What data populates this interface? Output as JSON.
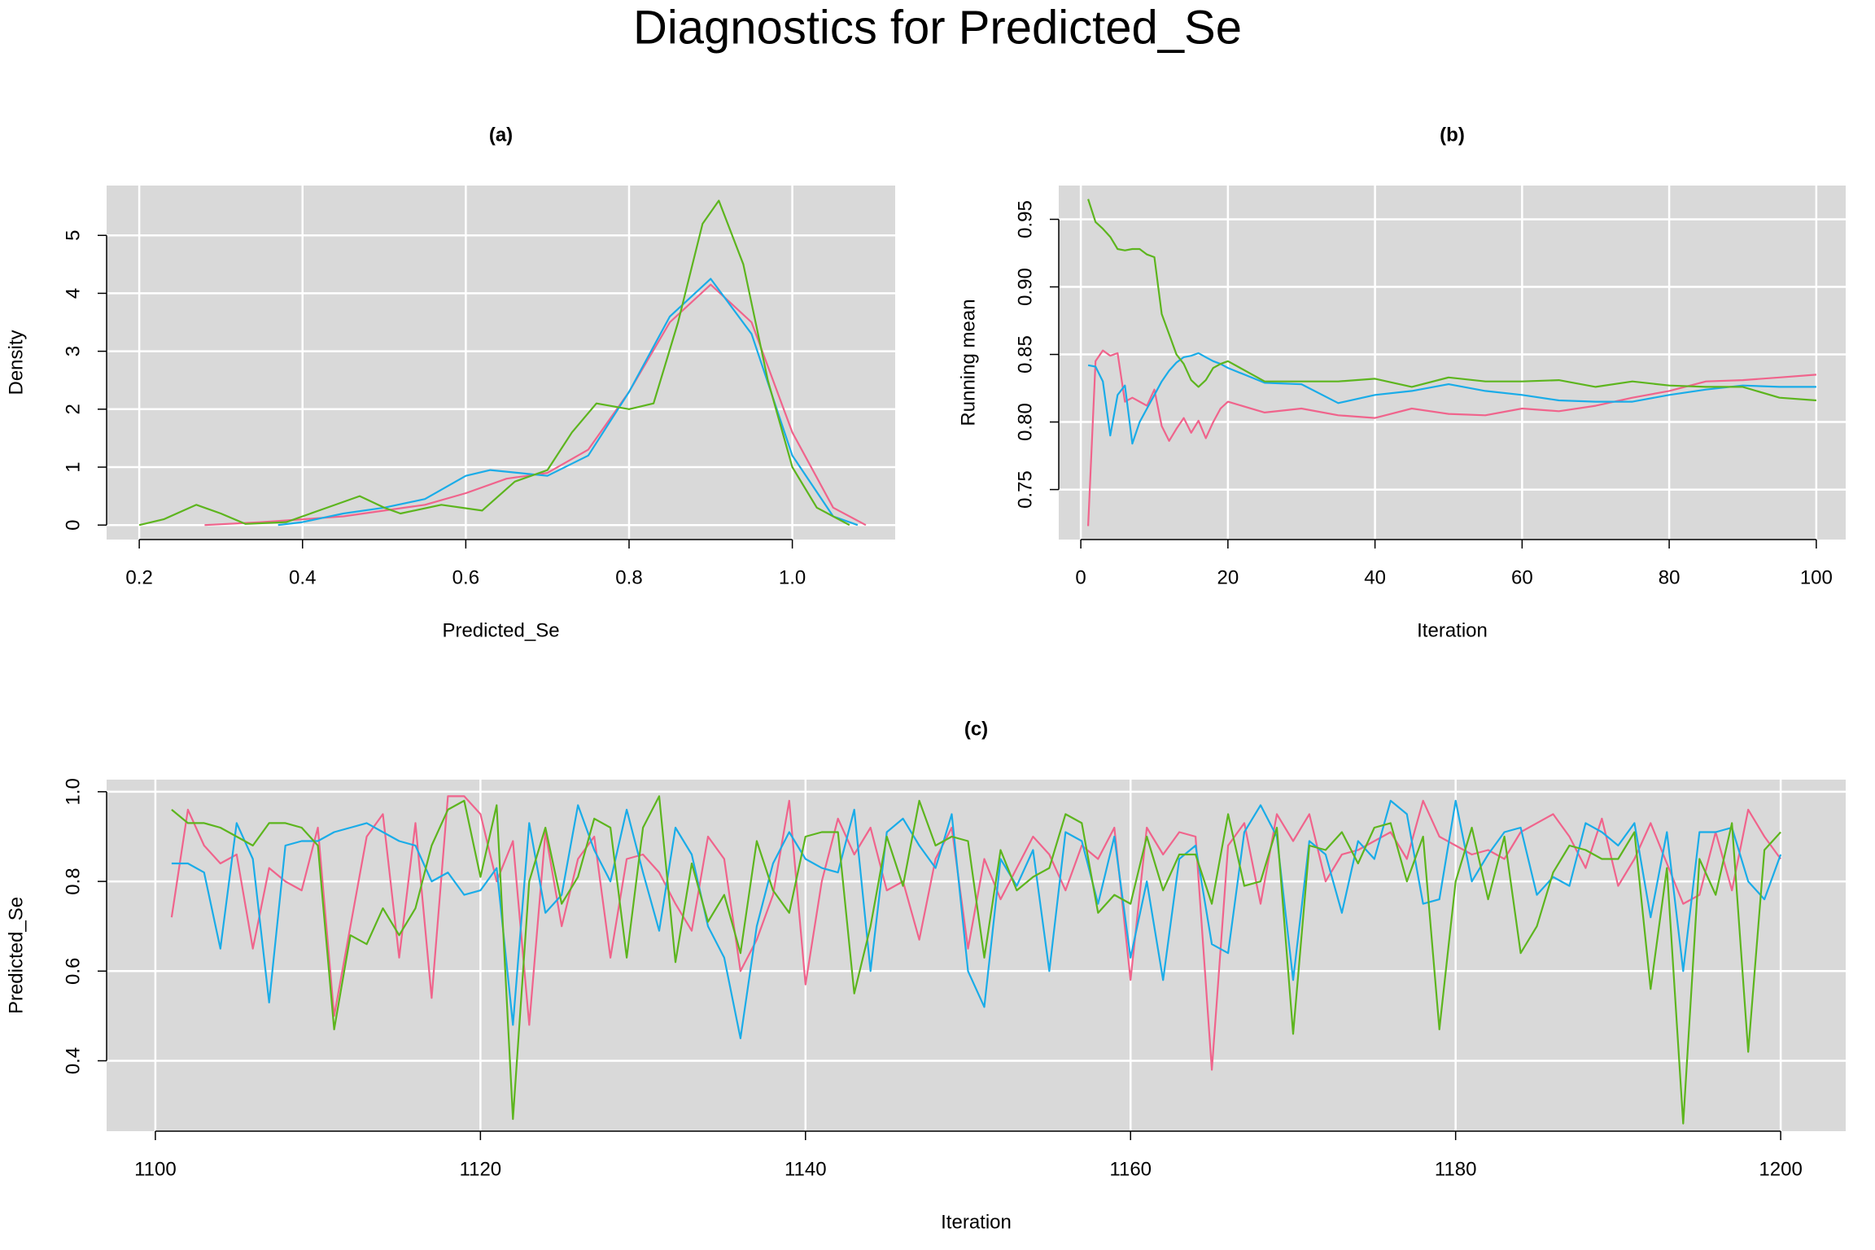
{
  "title": "Diagnostics for Predicted_Se",
  "chart_data": [
    {
      "type": "line",
      "title": "(a)",
      "xlabel": "Predicted_Se",
      "ylabel": "Density",
      "xlim": [
        0.16,
        1.126
      ],
      "ylim": [
        -0.25,
        5.86
      ],
      "xticks": [
        0.2,
        0.4,
        0.6,
        0.8,
        {
          "value": 1,
          "label": "1.0"
        }
      ],
      "yticks": [
        0,
        1,
        2,
        3,
        4,
        5
      ],
      "grid": true,
      "series": [
        {
          "color": "#F0648C",
          "x": [
            0.28,
            0.35,
            0.4,
            0.45,
            0.5,
            0.55,
            0.6,
            0.65,
            0.7,
            0.75,
            0.8,
            0.85,
            0.9,
            0.95,
            1.0,
            1.05,
            1.09
          ],
          "values": [
            0,
            0.05,
            0.1,
            0.15,
            0.25,
            0.35,
            0.55,
            0.8,
            0.9,
            1.3,
            2.3,
            3.5,
            4.15,
            3.5,
            1.6,
            0.3,
            0
          ]
        },
        {
          "color": "#1AACE8",
          "x": [
            0.37,
            0.4,
            0.45,
            0.5,
            0.55,
            0.6,
            0.63,
            0.7,
            0.75,
            0.8,
            0.85,
            0.9,
            0.95,
            1.0,
            1.05,
            1.08
          ],
          "values": [
            0,
            0.05,
            0.2,
            0.3,
            0.45,
            0.85,
            0.95,
            0.85,
            1.2,
            2.3,
            3.6,
            4.25,
            3.3,
            1.2,
            0.15,
            0
          ]
        },
        {
          "color": "#5DB51E",
          "x": [
            0.2,
            0.23,
            0.27,
            0.3,
            0.33,
            0.38,
            0.42,
            0.47,
            0.5,
            0.52,
            0.57,
            0.62,
            0.66,
            0.7,
            0.73,
            0.76,
            0.8,
            0.83,
            0.86,
            0.89,
            0.91,
            0.94,
            0.97,
            1.0,
            1.03,
            1.07
          ],
          "values": [
            0,
            0.1,
            0.35,
            0.2,
            0.02,
            0.05,
            0.25,
            0.5,
            0.3,
            0.2,
            0.35,
            0.25,
            0.75,
            0.95,
            1.6,
            2.1,
            2.0,
            2.1,
            3.5,
            5.2,
            5.6,
            4.5,
            2.5,
            1.0,
            0.3,
            0
          ]
        }
      ]
    },
    {
      "type": "line",
      "title": "(b)",
      "xlabel": "Iteration",
      "ylabel": "Running mean",
      "xlim": [
        -3,
        104
      ],
      "ylim": [
        0.713,
        0.975
      ],
      "xticks": [
        0,
        20,
        40,
        60,
        80,
        100
      ],
      "yticks": [
        0.75,
        {
          "value": 0.8,
          "label": "0.80"
        },
        0.85,
        {
          "value": 0.9,
          "label": "0.90"
        },
        0.95
      ],
      "grid": true,
      "x": [
        1,
        2,
        3,
        4,
        5,
        6,
        7,
        8,
        9,
        10,
        11,
        12,
        13,
        14,
        15,
        16,
        17,
        18,
        19,
        20,
        25,
        30,
        35,
        40,
        45,
        50,
        55,
        60,
        65,
        70,
        75,
        80,
        85,
        90,
        95,
        100
      ],
      "series": [
        {
          "color": "#F0648C",
          "values": [
            0.723,
            0.845,
            0.853,
            0.849,
            0.851,
            0.815,
            0.818,
            0.815,
            0.812,
            0.824,
            0.797,
            0.786,
            0.795,
            0.803,
            0.792,
            0.801,
            0.788,
            0.8,
            0.81,
            0.815,
            0.807,
            0.81,
            0.805,
            0.803,
            0.81,
            0.806,
            0.805,
            0.81,
            0.808,
            0.812,
            0.818,
            0.823,
            0.83,
            0.831,
            0.833,
            0.835
          ]
        },
        {
          "color": "#1AACE8",
          "values": [
            0.842,
            0.841,
            0.83,
            0.79,
            0.82,
            0.827,
            0.784,
            0.8,
            0.81,
            0.82,
            0.83,
            0.838,
            0.844,
            0.848,
            0.849,
            0.851,
            0.848,
            0.845,
            0.843,
            0.84,
            0.829,
            0.828,
            0.814,
            0.82,
            0.823,
            0.828,
            0.823,
            0.82,
            0.816,
            0.815,
            0.815,
            0.82,
            0.824,
            0.827,
            0.826,
            0.826
          ]
        },
        {
          "color": "#5DB51E",
          "values": [
            0.965,
            0.948,
            0.943,
            0.937,
            0.928,
            0.927,
            0.928,
            0.928,
            0.924,
            0.922,
            0.88,
            0.865,
            0.85,
            0.843,
            0.831,
            0.826,
            0.831,
            0.84,
            0.843,
            0.845,
            0.83,
            0.83,
            0.83,
            0.832,
            0.826,
            0.833,
            0.83,
            0.83,
            0.831,
            0.826,
            0.83,
            0.827,
            0.826,
            0.826,
            0.818,
            0.816
          ]
        }
      ]
    },
    {
      "type": "line",
      "title": "(c)",
      "xlabel": "Iteration",
      "ylabel": "Predicted_Se",
      "xlim": [
        1097,
        1204
      ],
      "ylim": [
        0.243,
        1.027
      ],
      "xticks": [
        1100,
        1120,
        1140,
        1160,
        1180,
        1200
      ],
      "yticks": [
        0.4,
        0.6,
        0.8,
        {
          "value": 1,
          "label": "1.0"
        }
      ],
      "grid": true,
      "x": [
        1101,
        1102,
        1103,
        1104,
        1105,
        1106,
        1107,
        1108,
        1109,
        1110,
        1111,
        1112,
        1113,
        1114,
        1115,
        1116,
        1117,
        1118,
        1119,
        1120,
        1121,
        1122,
        1123,
        1124,
        1125,
        1126,
        1127,
        1128,
        1129,
        1130,
        1131,
        1132,
        1133,
        1134,
        1135,
        1136,
        1137,
        1138,
        1139,
        1140,
        1141,
        1142,
        1143,
        1144,
        1145,
        1146,
        1147,
        1148,
        1149,
        1150,
        1151,
        1152,
        1153,
        1154,
        1155,
        1156,
        1157,
        1158,
        1159,
        1160,
        1161,
        1162,
        1163,
        1164,
        1165,
        1166,
        1167,
        1168,
        1169,
        1170,
        1171,
        1172,
        1173,
        1174,
        1175,
        1176,
        1177,
        1178,
        1179,
        1180,
        1181,
        1182,
        1183,
        1184,
        1185,
        1186,
        1187,
        1188,
        1189,
        1190,
        1191,
        1192,
        1193,
        1194,
        1195,
        1196,
        1197,
        1198,
        1199,
        1200
      ],
      "series": [
        {
          "color": "#F0648C",
          "values": [
            0.72,
            0.96,
            0.88,
            0.84,
            0.86,
            0.65,
            0.83,
            0.8,
            0.78,
            0.92,
            0.5,
            0.7,
            0.9,
            0.95,
            0.63,
            0.93,
            0.54,
            0.99,
            0.99,
            0.95,
            0.8,
            0.89,
            0.48,
            0.91,
            0.7,
            0.85,
            0.9,
            0.63,
            0.85,
            0.86,
            0.82,
            0.75,
            0.69,
            0.9,
            0.85,
            0.6,
            0.67,
            0.77,
            0.98,
            0.57,
            0.8,
            0.94,
            0.86,
            0.92,
            0.78,
            0.8,
            0.67,
            0.85,
            0.92,
            0.65,
            0.85,
            0.76,
            0.83,
            0.9,
            0.86,
            0.78,
            0.88,
            0.85,
            0.92,
            0.58,
            0.92,
            0.86,
            0.91,
            0.9,
            0.38,
            0.88,
            0.93,
            0.75,
            0.95,
            0.89,
            0.95,
            0.8,
            0.86,
            0.87,
            0.89,
            0.91,
            0.85,
            0.98,
            0.9,
            0.88,
            0.86,
            0.87,
            0.85,
            0.91,
            0.93,
            0.95,
            0.9,
            0.83,
            0.94,
            0.79,
            0.85,
            0.93,
            0.84,
            0.75,
            0.77,
            0.91,
            0.78,
            0.96,
            0.9,
            0.85
          ]
        },
        {
          "color": "#1AACE8",
          "values": [
            0.84,
            0.84,
            0.82,
            0.65,
            0.93,
            0.85,
            0.53,
            0.88,
            0.89,
            0.89,
            0.91,
            0.92,
            0.93,
            0.91,
            0.89,
            0.88,
            0.8,
            0.82,
            0.77,
            0.78,
            0.83,
            0.48,
            0.93,
            0.73,
            0.77,
            0.97,
            0.87,
            0.8,
            0.96,
            0.82,
            0.69,
            0.92,
            0.86,
            0.7,
            0.63,
            0.45,
            0.7,
            0.84,
            0.91,
            0.85,
            0.83,
            0.82,
            0.96,
            0.6,
            0.91,
            0.94,
            0.88,
            0.83,
            0.95,
            0.6,
            0.52,
            0.85,
            0.79,
            0.87,
            0.6,
            0.91,
            0.89,
            0.75,
            0.9,
            0.63,
            0.8,
            0.58,
            0.85,
            0.88,
            0.66,
            0.64,
            0.91,
            0.97,
            0.9,
            0.58,
            0.89,
            0.86,
            0.73,
            0.89,
            0.85,
            0.98,
            0.95,
            0.75,
            0.76,
            0.98,
            0.8,
            0.86,
            0.91,
            0.92,
            0.77,
            0.81,
            0.79,
            0.93,
            0.91,
            0.88,
            0.93,
            0.72,
            0.91,
            0.6,
            0.91,
            0.91,
            0.92,
            0.8,
            0.76,
            0.86
          ]
        },
        {
          "color": "#5DB51E",
          "values": [
            0.96,
            0.93,
            0.93,
            0.92,
            0.9,
            0.88,
            0.93,
            0.93,
            0.92,
            0.88,
            0.47,
            0.68,
            0.66,
            0.74,
            0.68,
            0.74,
            0.88,
            0.96,
            0.98,
            0.81,
            0.97,
            0.27,
            0.8,
            0.92,
            0.75,
            0.81,
            0.94,
            0.92,
            0.63,
            0.92,
            0.99,
            0.62,
            0.84,
            0.71,
            0.77,
            0.64,
            0.89,
            0.78,
            0.73,
            0.9,
            0.91,
            0.91,
            0.55,
            0.7,
            0.9,
            0.79,
            0.98,
            0.88,
            0.9,
            0.89,
            0.63,
            0.87,
            0.78,
            0.81,
            0.83,
            0.95,
            0.93,
            0.73,
            0.77,
            0.75,
            0.9,
            0.78,
            0.86,
            0.86,
            0.75,
            0.95,
            0.79,
            0.8,
            0.92,
            0.46,
            0.88,
            0.87,
            0.91,
            0.84,
            0.92,
            0.93,
            0.8,
            0.9,
            0.47,
            0.8,
            0.92,
            0.76,
            0.9,
            0.64,
            0.7,
            0.82,
            0.88,
            0.87,
            0.85,
            0.85,
            0.91,
            0.56,
            0.83,
            0.26,
            0.85,
            0.77,
            0.93,
            0.42,
            0.87,
            0.91
          ]
        }
      ]
    }
  ]
}
